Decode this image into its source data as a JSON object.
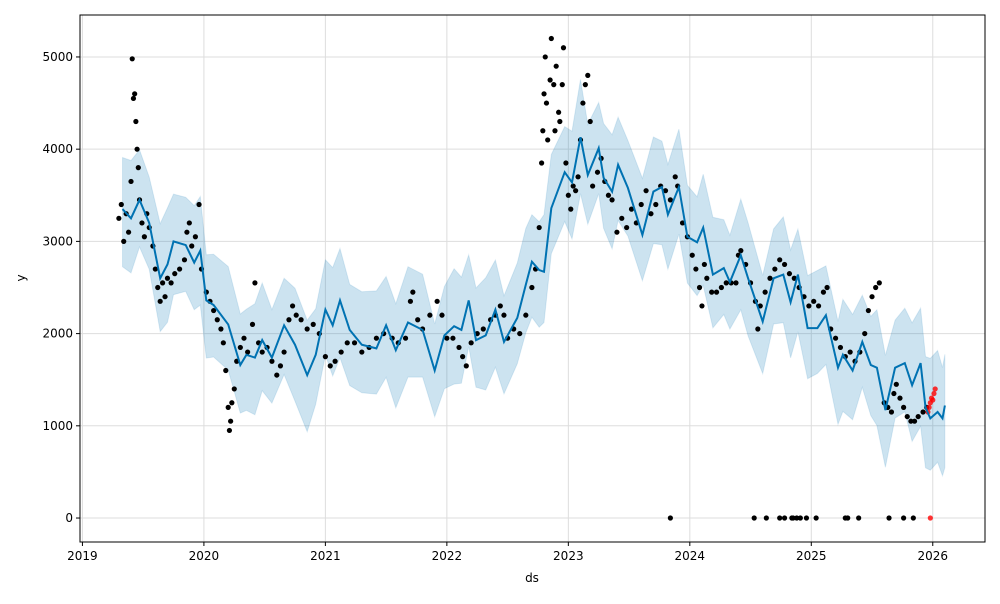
{
  "chart_data": {
    "type": "line",
    "title": "",
    "xlabel": "ds",
    "ylabel": "y",
    "xlim": [
      2018.98,
      2026.43
    ],
    "ylim": [
      -260,
      5455
    ],
    "grid": true,
    "x_ticks": [
      2019,
      2020,
      2021,
      2022,
      2023,
      2024,
      2025,
      2026
    ],
    "x_tick_labels": [
      "2019",
      "2020",
      "2021",
      "2022",
      "2023",
      "2024",
      "2025",
      "2026"
    ],
    "y_ticks": [
      0,
      1000,
      2000,
      3000,
      4000,
      5000
    ],
    "y_tick_labels": [
      "0",
      "1000",
      "2000",
      "3000",
      "4000",
      "5000"
    ],
    "colors": {
      "forecast": "#0072B2",
      "band": "#0072B2",
      "observed": "#000000",
      "recent": "#FF0000",
      "grid": "#dddddd"
    },
    "forecast": [
      [
        2019.33,
        3350
      ],
      [
        2019.4,
        3250
      ],
      [
        2019.47,
        3450
      ],
      [
        2019.55,
        3200
      ],
      [
        2019.64,
        2600
      ],
      [
        2019.7,
        2750
      ],
      [
        2019.75,
        3000
      ],
      [
        2019.85,
        2960
      ],
      [
        2019.92,
        2770
      ],
      [
        2019.97,
        2900
      ],
      [
        2020.02,
        2360
      ],
      [
        2020.08,
        2310
      ],
      [
        2020.2,
        2100
      ],
      [
        2020.3,
        1660
      ],
      [
        2020.35,
        1770
      ],
      [
        2020.42,
        1740
      ],
      [
        2020.48,
        1930
      ],
      [
        2020.56,
        1740
      ],
      [
        2020.66,
        2090
      ],
      [
        2020.75,
        1880
      ],
      [
        2020.85,
        1550
      ],
      [
        2020.92,
        1770
      ],
      [
        2021.0,
        2260
      ],
      [
        2021.06,
        2090
      ],
      [
        2021.12,
        2360
      ],
      [
        2021.2,
        2040
      ],
      [
        2021.3,
        1880
      ],
      [
        2021.42,
        1840
      ],
      [
        2021.5,
        2090
      ],
      [
        2021.58,
        1820
      ],
      [
        2021.68,
        2120
      ],
      [
        2021.8,
        2040
      ],
      [
        2021.9,
        1600
      ],
      [
        2021.98,
        1980
      ],
      [
        2022.06,
        2080
      ],
      [
        2022.12,
        2040
      ],
      [
        2022.18,
        2360
      ],
      [
        2022.24,
        1930
      ],
      [
        2022.32,
        1980
      ],
      [
        2022.4,
        2260
      ],
      [
        2022.47,
        1910
      ],
      [
        2022.58,
        2170
      ],
      [
        2022.65,
        2530
      ],
      [
        2022.7,
        2780
      ],
      [
        2022.76,
        2690
      ],
      [
        2022.8,
        2670
      ],
      [
        2022.86,
        3360
      ],
      [
        2022.97,
        3750
      ],
      [
        2023.03,
        3640
      ],
      [
        2023.1,
        4130
      ],
      [
        2023.16,
        3720
      ],
      [
        2023.25,
        4010
      ],
      [
        2023.29,
        3690
      ],
      [
        2023.36,
        3540
      ],
      [
        2023.41,
        3830
      ],
      [
        2023.49,
        3580
      ],
      [
        2023.61,
        3070
      ],
      [
        2023.7,
        3540
      ],
      [
        2023.77,
        3590
      ],
      [
        2023.82,
        3290
      ],
      [
        2023.91,
        3590
      ],
      [
        2023.98,
        3050
      ],
      [
        2024.06,
        2990
      ],
      [
        2024.11,
        3150
      ],
      [
        2024.19,
        2640
      ],
      [
        2024.28,
        2710
      ],
      [
        2024.33,
        2560
      ],
      [
        2024.42,
        2850
      ],
      [
        2024.48,
        2600
      ],
      [
        2024.6,
        2130
      ],
      [
        2024.69,
        2600
      ],
      [
        2024.77,
        2640
      ],
      [
        2024.83,
        2340
      ],
      [
        2024.89,
        2640
      ],
      [
        2024.97,
        2060
      ],
      [
        2025.05,
        2060
      ],
      [
        2025.12,
        2200
      ],
      [
        2025.22,
        1630
      ],
      [
        2025.26,
        1770
      ],
      [
        2025.34,
        1600
      ],
      [
        2025.42,
        1910
      ],
      [
        2025.49,
        1660
      ],
      [
        2025.54,
        1630
      ],
      [
        2025.61,
        1170
      ],
      [
        2025.69,
        1630
      ],
      [
        2025.77,
        1680
      ],
      [
        2025.83,
        1440
      ],
      [
        2025.9,
        1680
      ],
      [
        2025.94,
        1200
      ],
      [
        2025.98,
        1080
      ],
      [
        2026.04,
        1150
      ],
      [
        2026.08,
        1080
      ],
      [
        2026.1,
        1220
      ]
    ],
    "interval_halfwidth": [
      [
        2019.33,
        560
      ],
      [
        2025.5,
        560
      ],
      [
        2025.94,
        620
      ],
      [
        2026.1,
        600
      ]
    ],
    "observed": [
      [
        2019.3,
        3250
      ],
      [
        2019.32,
        3400
      ],
      [
        2019.34,
        3000
      ],
      [
        2019.36,
        3300
      ],
      [
        2019.38,
        3100
      ],
      [
        2019.4,
        3650
      ],
      [
        2019.41,
        4980
      ],
      [
        2019.42,
        4550
      ],
      [
        2019.43,
        4600
      ],
      [
        2019.44,
        4300
      ],
      [
        2019.45,
        4000
      ],
      [
        2019.46,
        3800
      ],
      [
        2019.47,
        3450
      ],
      [
        2019.49,
        3200
      ],
      [
        2019.51,
        3050
      ],
      [
        2019.53,
        3300
      ],
      [
        2019.55,
        3150
      ],
      [
        2019.58,
        2950
      ],
      [
        2019.6,
        2700
      ],
      [
        2019.62,
        2500
      ],
      [
        2019.64,
        2350
      ],
      [
        2019.66,
        2550
      ],
      [
        2019.68,
        2400
      ],
      [
        2019.7,
        2600
      ],
      [
        2019.73,
        2550
      ],
      [
        2019.76,
        2650
      ],
      [
        2019.8,
        2700
      ],
      [
        2019.84,
        2800
      ],
      [
        2019.86,
        3100
      ],
      [
        2019.88,
        3200
      ],
      [
        2019.9,
        2950
      ],
      [
        2019.93,
        3050
      ],
      [
        2019.96,
        3400
      ],
      [
        2019.98,
        2700
      ],
      [
        2020.02,
        2450
      ],
      [
        2020.05,
        2350
      ],
      [
        2020.08,
        2250
      ],
      [
        2020.11,
        2150
      ],
      [
        2020.14,
        2050
      ],
      [
        2020.16,
        1900
      ],
      [
        2020.18,
        1600
      ],
      [
        2020.2,
        1200
      ],
      [
        2020.21,
        950
      ],
      [
        2020.22,
        1050
      ],
      [
        2020.23,
        1250
      ],
      [
        2020.25,
        1400
      ],
      [
        2020.27,
        1700
      ],
      [
        2020.3,
        1850
      ],
      [
        2020.33,
        1950
      ],
      [
        2020.36,
        1800
      ],
      [
        2020.4,
        2100
      ],
      [
        2020.42,
        2550
      ],
      [
        2020.45,
        1900
      ],
      [
        2020.48,
        1800
      ],
      [
        2020.52,
        1850
      ],
      [
        2020.56,
        1700
      ],
      [
        2020.6,
        1550
      ],
      [
        2020.63,
        1650
      ],
      [
        2020.66,
        1800
      ],
      [
        2020.7,
        2150
      ],
      [
        2020.73,
        2300
      ],
      [
        2020.76,
        2200
      ],
      [
        2020.8,
        2150
      ],
      [
        2020.85,
        2050
      ],
      [
        2020.9,
        2100
      ],
      [
        2020.95,
        2000
      ],
      [
        2021.0,
        1750
      ],
      [
        2021.04,
        1650
      ],
      [
        2021.08,
        1700
      ],
      [
        2021.13,
        1800
      ],
      [
        2021.18,
        1900
      ],
      [
        2021.24,
        1900
      ],
      [
        2021.3,
        1800
      ],
      [
        2021.36,
        1850
      ],
      [
        2021.42,
        1950
      ],
      [
        2021.48,
        2000
      ],
      [
        2021.55,
        1950
      ],
      [
        2021.6,
        1900
      ],
      [
        2021.66,
        1950
      ],
      [
        2021.7,
        2350
      ],
      [
        2021.72,
        2450
      ],
      [
        2021.76,
        2150
      ],
      [
        2021.8,
        2050
      ],
      [
        2021.86,
        2200
      ],
      [
        2021.92,
        2350
      ],
      [
        2021.96,
        2200
      ],
      [
        2022.0,
        1950
      ],
      [
        2022.05,
        1950
      ],
      [
        2022.1,
        1850
      ],
      [
        2022.13,
        1750
      ],
      [
        2022.16,
        1650
      ],
      [
        2022.2,
        1900
      ],
      [
        2022.25,
        2000
      ],
      [
        2022.3,
        2050
      ],
      [
        2022.36,
        2150
      ],
      [
        2022.4,
        2200
      ],
      [
        2022.44,
        2300
      ],
      [
        2022.47,
        2200
      ],
      [
        2022.5,
        1950
      ],
      [
        2022.55,
        2050
      ],
      [
        2022.6,
        2000
      ],
      [
        2022.65,
        2200
      ],
      [
        2022.7,
        2500
      ],
      [
        2022.73,
        2700
      ],
      [
        2022.76,
        3150
      ],
      [
        2022.78,
        3850
      ],
      [
        2022.79,
        4200
      ],
      [
        2022.8,
        4600
      ],
      [
        2022.81,
        5000
      ],
      [
        2022.82,
        4500
      ],
      [
        2022.83,
        4100
      ],
      [
        2022.85,
        4750
      ],
      [
        2022.86,
        5200
      ],
      [
        2022.88,
        4700
      ],
      [
        2022.89,
        4200
      ],
      [
        2022.9,
        4900
      ],
      [
        2022.92,
        4400
      ],
      [
        2022.93,
        4300
      ],
      [
        2022.95,
        4700
      ],
      [
        2022.96,
        5100
      ],
      [
        2022.98,
        3850
      ],
      [
        2023.0,
        3500
      ],
      [
        2023.02,
        3350
      ],
      [
        2023.04,
        3600
      ],
      [
        2023.06,
        3550
      ],
      [
        2023.08,
        3700
      ],
      [
        2023.1,
        4100
      ],
      [
        2023.12,
        4500
      ],
      [
        2023.14,
        4700
      ],
      [
        2023.16,
        4800
      ],
      [
        2023.18,
        4300
      ],
      [
        2023.2,
        3600
      ],
      [
        2023.24,
        3750
      ],
      [
        2023.27,
        3900
      ],
      [
        2023.3,
        3650
      ],
      [
        2023.33,
        3500
      ],
      [
        2023.36,
        3450
      ],
      [
        2023.4,
        3100
      ],
      [
        2023.44,
        3250
      ],
      [
        2023.48,
        3150
      ],
      [
        2023.52,
        3350
      ],
      [
        2023.56,
        3200
      ],
      [
        2023.6,
        3400
      ],
      [
        2023.64,
        3550
      ],
      [
        2023.68,
        3300
      ],
      [
        2023.72,
        3400
      ],
      [
        2023.76,
        3600
      ],
      [
        2023.8,
        3550
      ],
      [
        2023.84,
        3450
      ],
      [
        2023.88,
        3700
      ],
      [
        2023.9,
        3600
      ],
      [
        2023.94,
        3200
      ],
      [
        2023.98,
        3050
      ],
      [
        2024.02,
        2850
      ],
      [
        2024.05,
        2700
      ],
      [
        2024.08,
        2500
      ],
      [
        2024.1,
        2300
      ],
      [
        2024.12,
        2750
      ],
      [
        2024.14,
        2600
      ],
      [
        2024.18,
        2450
      ],
      [
        2024.22,
        2450
      ],
      [
        2024.26,
        2500
      ],
      [
        2024.3,
        2550
      ],
      [
        2024.34,
        2550
      ],
      [
        2024.38,
        2550
      ],
      [
        2024.4,
        2850
      ],
      [
        2024.42,
        2900
      ],
      [
        2024.46,
        2750
      ],
      [
        2024.5,
        2550
      ],
      [
        2024.54,
        2350
      ],
      [
        2024.56,
        2050
      ],
      [
        2024.58,
        2300
      ],
      [
        2024.62,
        2450
      ],
      [
        2024.66,
        2600
      ],
      [
        2024.7,
        2700
      ],
      [
        2024.74,
        2800
      ],
      [
        2024.78,
        2750
      ],
      [
        2024.82,
        2650
      ],
      [
        2024.86,
        2600
      ],
      [
        2024.9,
        2500
      ],
      [
        2024.94,
        2400
      ],
      [
        2024.98,
        2300
      ],
      [
        2025.02,
        2350
      ],
      [
        2025.06,
        2300
      ],
      [
        2025.1,
        2450
      ],
      [
        2025.13,
        2500
      ],
      [
        2025.16,
        2050
      ],
      [
        2025.2,
        1950
      ],
      [
        2025.24,
        1850
      ],
      [
        2025.28,
        1750
      ],
      [
        2025.32,
        1800
      ],
      [
        2025.36,
        1700
      ],
      [
        2025.4,
        1800
      ],
      [
        2025.44,
        2000
      ],
      [
        2025.47,
        2250
      ],
      [
        2025.5,
        2400
      ],
      [
        2025.53,
        2500
      ],
      [
        2025.56,
        2550
      ],
      [
        2025.6,
        1250
      ],
      [
        2025.63,
        1200
      ],
      [
        2025.66,
        1150
      ],
      [
        2025.68,
        1350
      ],
      [
        2025.7,
        1450
      ],
      [
        2025.73,
        1300
      ],
      [
        2025.76,
        1200
      ],
      [
        2025.79,
        1100
      ],
      [
        2025.82,
        1050
      ],
      [
        2025.85,
        1050
      ],
      [
        2025.88,
        1100
      ],
      [
        2025.92,
        1150
      ],
      [
        2025.95,
        1200
      ],
      [
        2023.84,
        0
      ],
      [
        2024.53,
        0
      ],
      [
        2024.63,
        0
      ],
      [
        2024.74,
        0
      ],
      [
        2024.78,
        0
      ],
      [
        2024.84,
        0
      ],
      [
        2024.85,
        0
      ],
      [
        2024.88,
        0
      ],
      [
        2024.91,
        0
      ],
      [
        2024.96,
        0
      ],
      [
        2025.04,
        0
      ],
      [
        2025.28,
        0
      ],
      [
        2025.3,
        0
      ],
      [
        2025.39,
        0
      ],
      [
        2025.64,
        0
      ],
      [
        2025.76,
        0
      ],
      [
        2025.84,
        0
      ]
    ],
    "recent": [
      [
        2025.96,
        1150
      ],
      [
        2025.97,
        1200
      ],
      [
        2025.98,
        1250
      ],
      [
        2025.99,
        1300
      ],
      [
        2026.0,
        1280
      ],
      [
        2026.01,
        1350
      ],
      [
        2026.02,
        1400
      ],
      [
        2025.98,
        0
      ]
    ]
  }
}
